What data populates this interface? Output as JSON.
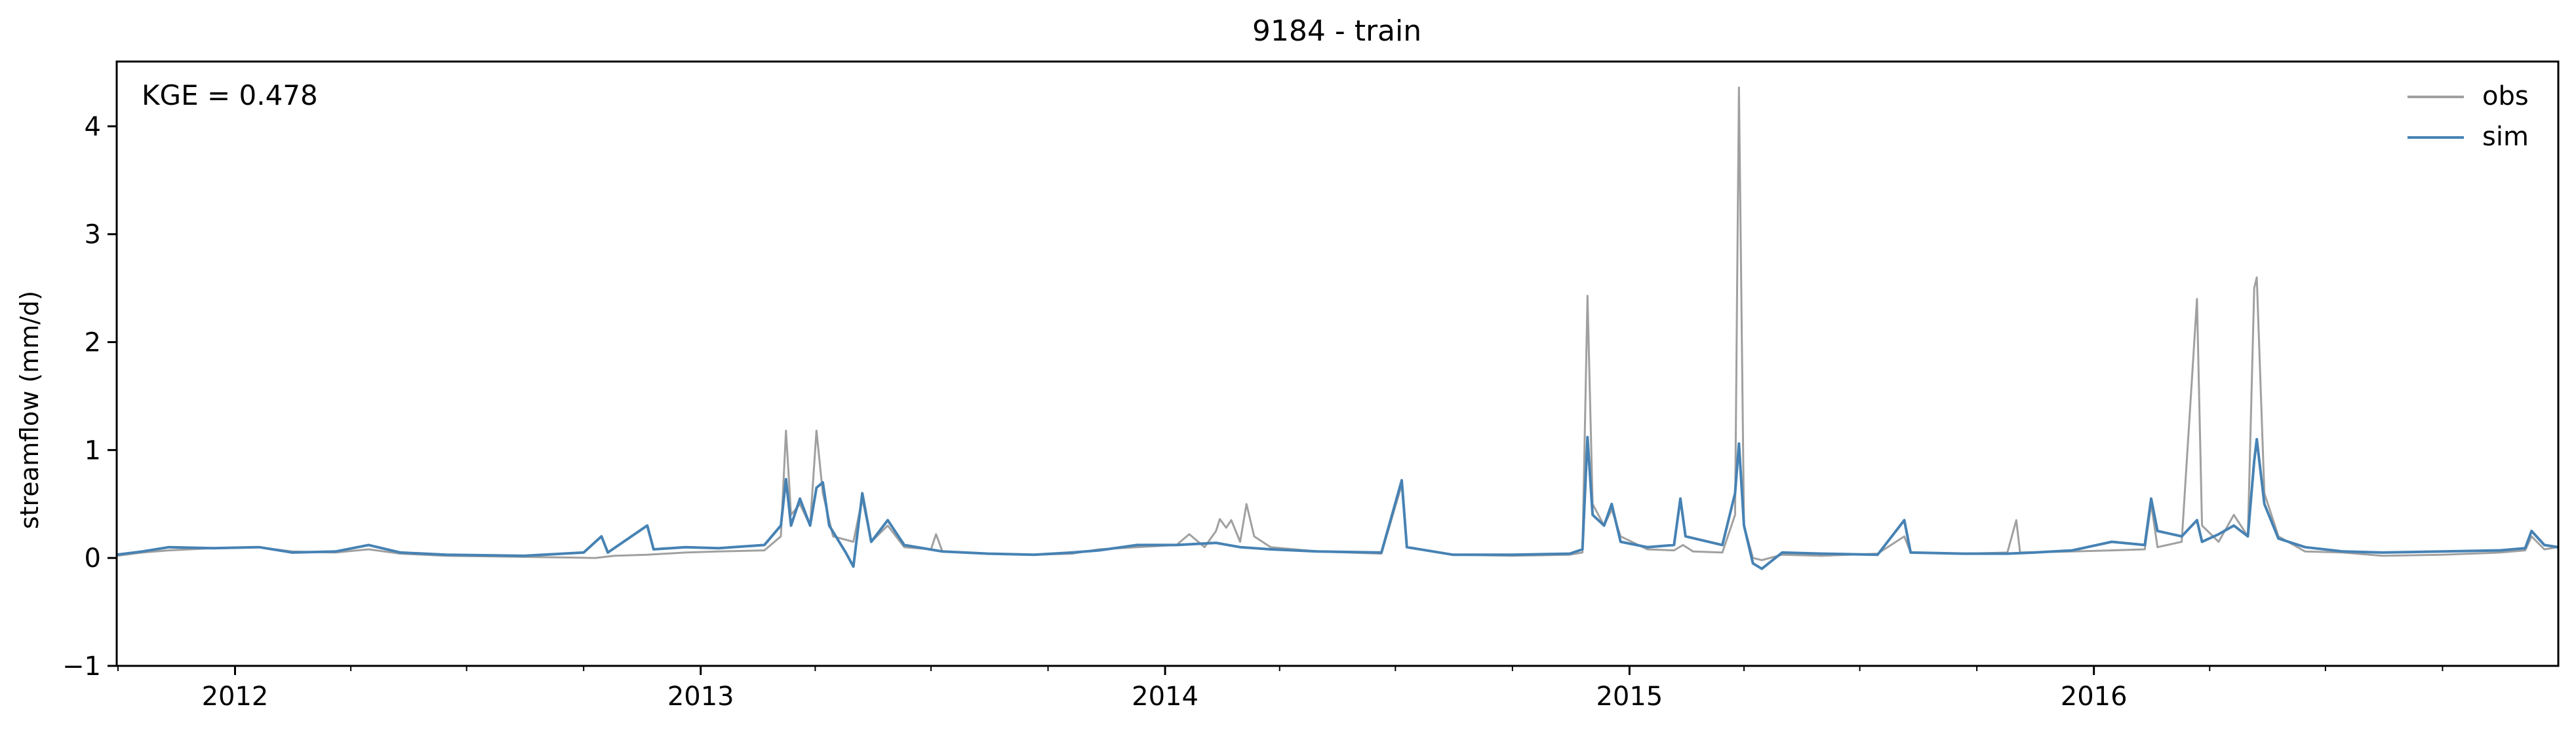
{
  "chart_data": {
    "type": "line",
    "title": "9184 - train",
    "xlabel": "",
    "ylabel": "streamflow (mm/d)",
    "annotation": "KGE = 0.478",
    "x_range": [
      "2011-09-30",
      "2016-12-31"
    ],
    "ylim": [
      -1,
      4.6
    ],
    "yticks": [
      -1,
      0,
      1,
      2,
      3,
      4
    ],
    "xticks": [
      {
        "date": "2012-01-01",
        "label": "2012"
      },
      {
        "date": "2013-01-01",
        "label": "2013"
      },
      {
        "date": "2014-01-01",
        "label": "2014"
      },
      {
        "date": "2015-01-01",
        "label": "2015"
      },
      {
        "date": "2016-01-01",
        "label": "2016"
      }
    ],
    "grid": false,
    "legend": "top-right",
    "series": [
      {
        "name": "obs",
        "color": "#a0a0a0",
        "points": [
          [
            "2011-09-30",
            0.02
          ],
          [
            "2011-10-20",
            0.05
          ],
          [
            "2011-11-10",
            0.07
          ],
          [
            "2011-12-15",
            0.09
          ],
          [
            "2012-01-20",
            0.1
          ],
          [
            "2012-02-15",
            0.06
          ],
          [
            "2012-03-20",
            0.05
          ],
          [
            "2012-04-15",
            0.08
          ],
          [
            "2012-05-10",
            0.04
          ],
          [
            "2012-06-15",
            0.02
          ],
          [
            "2012-08-15",
            0.01
          ],
          [
            "2012-10-10",
            0.0
          ],
          [
            "2012-10-25",
            0.02
          ],
          [
            "2012-11-20",
            0.03
          ],
          [
            "2012-12-20",
            0.05
          ],
          [
            "2013-01-15",
            0.06
          ],
          [
            "2013-02-20",
            0.07
          ],
          [
            "2013-03-05",
            0.2
          ],
          [
            "2013-03-09",
            1.18
          ],
          [
            "2013-03-13",
            0.4
          ],
          [
            "2013-03-20",
            0.5
          ],
          [
            "2013-03-28",
            0.3
          ],
          [
            "2013-04-02",
            1.18
          ],
          [
            "2013-04-07",
            0.6
          ],
          [
            "2013-04-15",
            0.2
          ],
          [
            "2013-05-01",
            0.15
          ],
          [
            "2013-05-08",
            0.55
          ],
          [
            "2013-05-15",
            0.15
          ],
          [
            "2013-05-28",
            0.3
          ],
          [
            "2013-06-10",
            0.1
          ],
          [
            "2013-07-01",
            0.08
          ],
          [
            "2013-07-05",
            0.22
          ],
          [
            "2013-07-10",
            0.06
          ],
          [
            "2013-08-15",
            0.04
          ],
          [
            "2013-09-20",
            0.03
          ],
          [
            "2013-10-20",
            0.04
          ],
          [
            "2013-11-10",
            0.08
          ],
          [
            "2013-12-10",
            0.1
          ],
          [
            "2014-01-10",
            0.12
          ],
          [
            "2014-01-20",
            0.22
          ],
          [
            "2014-02-01",
            0.1
          ],
          [
            "2014-02-10",
            0.25
          ],
          [
            "2014-02-13",
            0.36
          ],
          [
            "2014-02-18",
            0.28
          ],
          [
            "2014-02-22",
            0.35
          ],
          [
            "2014-03-01",
            0.15
          ],
          [
            "2014-03-06",
            0.5
          ],
          [
            "2014-03-12",
            0.2
          ],
          [
            "2014-03-25",
            0.1
          ],
          [
            "2014-05-01",
            0.06
          ],
          [
            "2014-06-20",
            0.04
          ],
          [
            "2014-07-06",
            0.68
          ],
          [
            "2014-07-10",
            0.1
          ],
          [
            "2014-08-15",
            0.03
          ],
          [
            "2014-10-01",
            0.02
          ],
          [
            "2014-11-15",
            0.03
          ],
          [
            "2014-11-25",
            0.05
          ],
          [
            "2014-11-29",
            2.43
          ],
          [
            "2014-12-03",
            0.5
          ],
          [
            "2014-12-12",
            0.3
          ],
          [
            "2014-12-18",
            0.45
          ],
          [
            "2014-12-25",
            0.2
          ],
          [
            "2015-01-15",
            0.08
          ],
          [
            "2015-02-05",
            0.07
          ],
          [
            "2015-02-12",
            0.12
          ],
          [
            "2015-02-20",
            0.06
          ],
          [
            "2015-03-15",
            0.05
          ],
          [
            "2015-03-25",
            0.4
          ],
          [
            "2015-03-28",
            4.36
          ],
          [
            "2015-04-01",
            0.3
          ],
          [
            "2015-04-08",
            0.0
          ],
          [
            "2015-04-15",
            -0.02
          ],
          [
            "2015-05-01",
            0.03
          ],
          [
            "2015-06-01",
            0.02
          ],
          [
            "2015-07-15",
            0.04
          ],
          [
            "2015-08-05",
            0.2
          ],
          [
            "2015-08-10",
            0.05
          ],
          [
            "2015-09-20",
            0.04
          ],
          [
            "2015-10-25",
            0.05
          ],
          [
            "2015-11-01",
            0.35
          ],
          [
            "2015-11-04",
            0.05
          ],
          [
            "2015-12-15",
            0.06
          ],
          [
            "2016-01-15",
            0.07
          ],
          [
            "2016-02-10",
            0.08
          ],
          [
            "2016-02-15",
            0.5
          ],
          [
            "2016-02-20",
            0.1
          ],
          [
            "2016-03-10",
            0.15
          ],
          [
            "2016-03-22",
            2.4
          ],
          [
            "2016-03-26",
            0.3
          ],
          [
            "2016-04-08",
            0.15
          ],
          [
            "2016-04-20",
            0.4
          ],
          [
            "2016-05-01",
            0.2
          ],
          [
            "2016-05-06",
            2.5
          ],
          [
            "2016-05-08",
            2.6
          ],
          [
            "2016-05-14",
            0.6
          ],
          [
            "2016-05-25",
            0.2
          ],
          [
            "2016-06-15",
            0.06
          ],
          [
            "2016-07-15",
            0.05
          ],
          [
            "2016-08-15",
            0.02
          ],
          [
            "2016-10-01",
            0.03
          ],
          [
            "2016-11-15",
            0.05
          ],
          [
            "2016-12-05",
            0.07
          ],
          [
            "2016-12-10",
            0.2
          ],
          [
            "2016-12-20",
            0.08
          ],
          [
            "2016-12-31",
            0.1
          ]
        ]
      },
      {
        "name": "sim",
        "color": "#4682b4",
        "points": [
          [
            "2011-09-30",
            0.03
          ],
          [
            "2011-10-20",
            0.06
          ],
          [
            "2011-11-10",
            0.1
          ],
          [
            "2011-12-15",
            0.09
          ],
          [
            "2012-01-20",
            0.1
          ],
          [
            "2012-02-15",
            0.05
          ],
          [
            "2012-03-20",
            0.06
          ],
          [
            "2012-04-15",
            0.12
          ],
          [
            "2012-05-10",
            0.05
          ],
          [
            "2012-06-15",
            0.03
          ],
          [
            "2012-08-15",
            0.02
          ],
          [
            "2012-10-01",
            0.05
          ],
          [
            "2012-10-15",
            0.2
          ],
          [
            "2012-10-20",
            0.05
          ],
          [
            "2012-11-20",
            0.3
          ],
          [
            "2012-11-25",
            0.08
          ],
          [
            "2012-12-20",
            0.1
          ],
          [
            "2013-01-15",
            0.09
          ],
          [
            "2013-02-20",
            0.12
          ],
          [
            "2013-03-05",
            0.3
          ],
          [
            "2013-03-09",
            0.73
          ],
          [
            "2013-03-13",
            0.3
          ],
          [
            "2013-03-20",
            0.55
          ],
          [
            "2013-03-28",
            0.3
          ],
          [
            "2013-04-02",
            0.65
          ],
          [
            "2013-04-07",
            0.7
          ],
          [
            "2013-04-12",
            0.3
          ],
          [
            "2013-04-25",
            0.05
          ],
          [
            "2013-05-01",
            -0.08
          ],
          [
            "2013-05-08",
            0.6
          ],
          [
            "2013-05-15",
            0.15
          ],
          [
            "2013-05-28",
            0.35
          ],
          [
            "2013-06-10",
            0.12
          ],
          [
            "2013-07-10",
            0.06
          ],
          [
            "2013-08-15",
            0.04
          ],
          [
            "2013-09-20",
            0.03
          ],
          [
            "2013-10-20",
            0.05
          ],
          [
            "2013-11-10",
            0.07
          ],
          [
            "2013-12-10",
            0.12
          ],
          [
            "2014-01-10",
            0.12
          ],
          [
            "2014-02-10",
            0.14
          ],
          [
            "2014-03-01",
            0.1
          ],
          [
            "2014-03-25",
            0.08
          ],
          [
            "2014-05-01",
            0.06
          ],
          [
            "2014-06-20",
            0.05
          ],
          [
            "2014-07-06",
            0.72
          ],
          [
            "2014-07-10",
            0.1
          ],
          [
            "2014-08-15",
            0.03
          ],
          [
            "2014-10-01",
            0.03
          ],
          [
            "2014-11-15",
            0.04
          ],
          [
            "2014-11-25",
            0.08
          ],
          [
            "2014-11-29",
            1.12
          ],
          [
            "2014-12-03",
            0.4
          ],
          [
            "2014-12-12",
            0.3
          ],
          [
            "2014-12-18",
            0.5
          ],
          [
            "2014-12-25",
            0.15
          ],
          [
            "2015-01-15",
            0.1
          ],
          [
            "2015-02-05",
            0.12
          ],
          [
            "2015-02-10",
            0.55
          ],
          [
            "2015-02-14",
            0.2
          ],
          [
            "2015-03-15",
            0.12
          ],
          [
            "2015-03-25",
            0.6
          ],
          [
            "2015-03-28",
            1.06
          ],
          [
            "2015-04-01",
            0.3
          ],
          [
            "2015-04-08",
            -0.05
          ],
          [
            "2015-04-15",
            -0.1
          ],
          [
            "2015-05-01",
            0.05
          ],
          [
            "2015-06-01",
            0.04
          ],
          [
            "2015-07-15",
            0.03
          ],
          [
            "2015-08-05",
            0.35
          ],
          [
            "2015-08-10",
            0.05
          ],
          [
            "2015-09-20",
            0.04
          ],
          [
            "2015-10-25",
            0.04
          ],
          [
            "2015-11-15",
            0.05
          ],
          [
            "2015-12-15",
            0.07
          ],
          [
            "2016-01-15",
            0.15
          ],
          [
            "2016-02-10",
            0.12
          ],
          [
            "2016-02-15",
            0.55
          ],
          [
            "2016-02-20",
            0.25
          ],
          [
            "2016-03-10",
            0.2
          ],
          [
            "2016-03-22",
            0.35
          ],
          [
            "2016-03-26",
            0.15
          ],
          [
            "2016-04-08",
            0.22
          ],
          [
            "2016-04-20",
            0.3
          ],
          [
            "2016-05-01",
            0.2
          ],
          [
            "2016-05-06",
            0.9
          ],
          [
            "2016-05-08",
            1.1
          ],
          [
            "2016-05-14",
            0.5
          ],
          [
            "2016-05-25",
            0.18
          ],
          [
            "2016-06-15",
            0.1
          ],
          [
            "2016-07-15",
            0.06
          ],
          [
            "2016-08-15",
            0.05
          ],
          [
            "2016-10-01",
            0.06
          ],
          [
            "2016-11-15",
            0.07
          ],
          [
            "2016-12-05",
            0.09
          ],
          [
            "2016-12-10",
            0.25
          ],
          [
            "2016-12-20",
            0.12
          ],
          [
            "2016-12-31",
            0.1
          ]
        ]
      }
    ]
  }
}
